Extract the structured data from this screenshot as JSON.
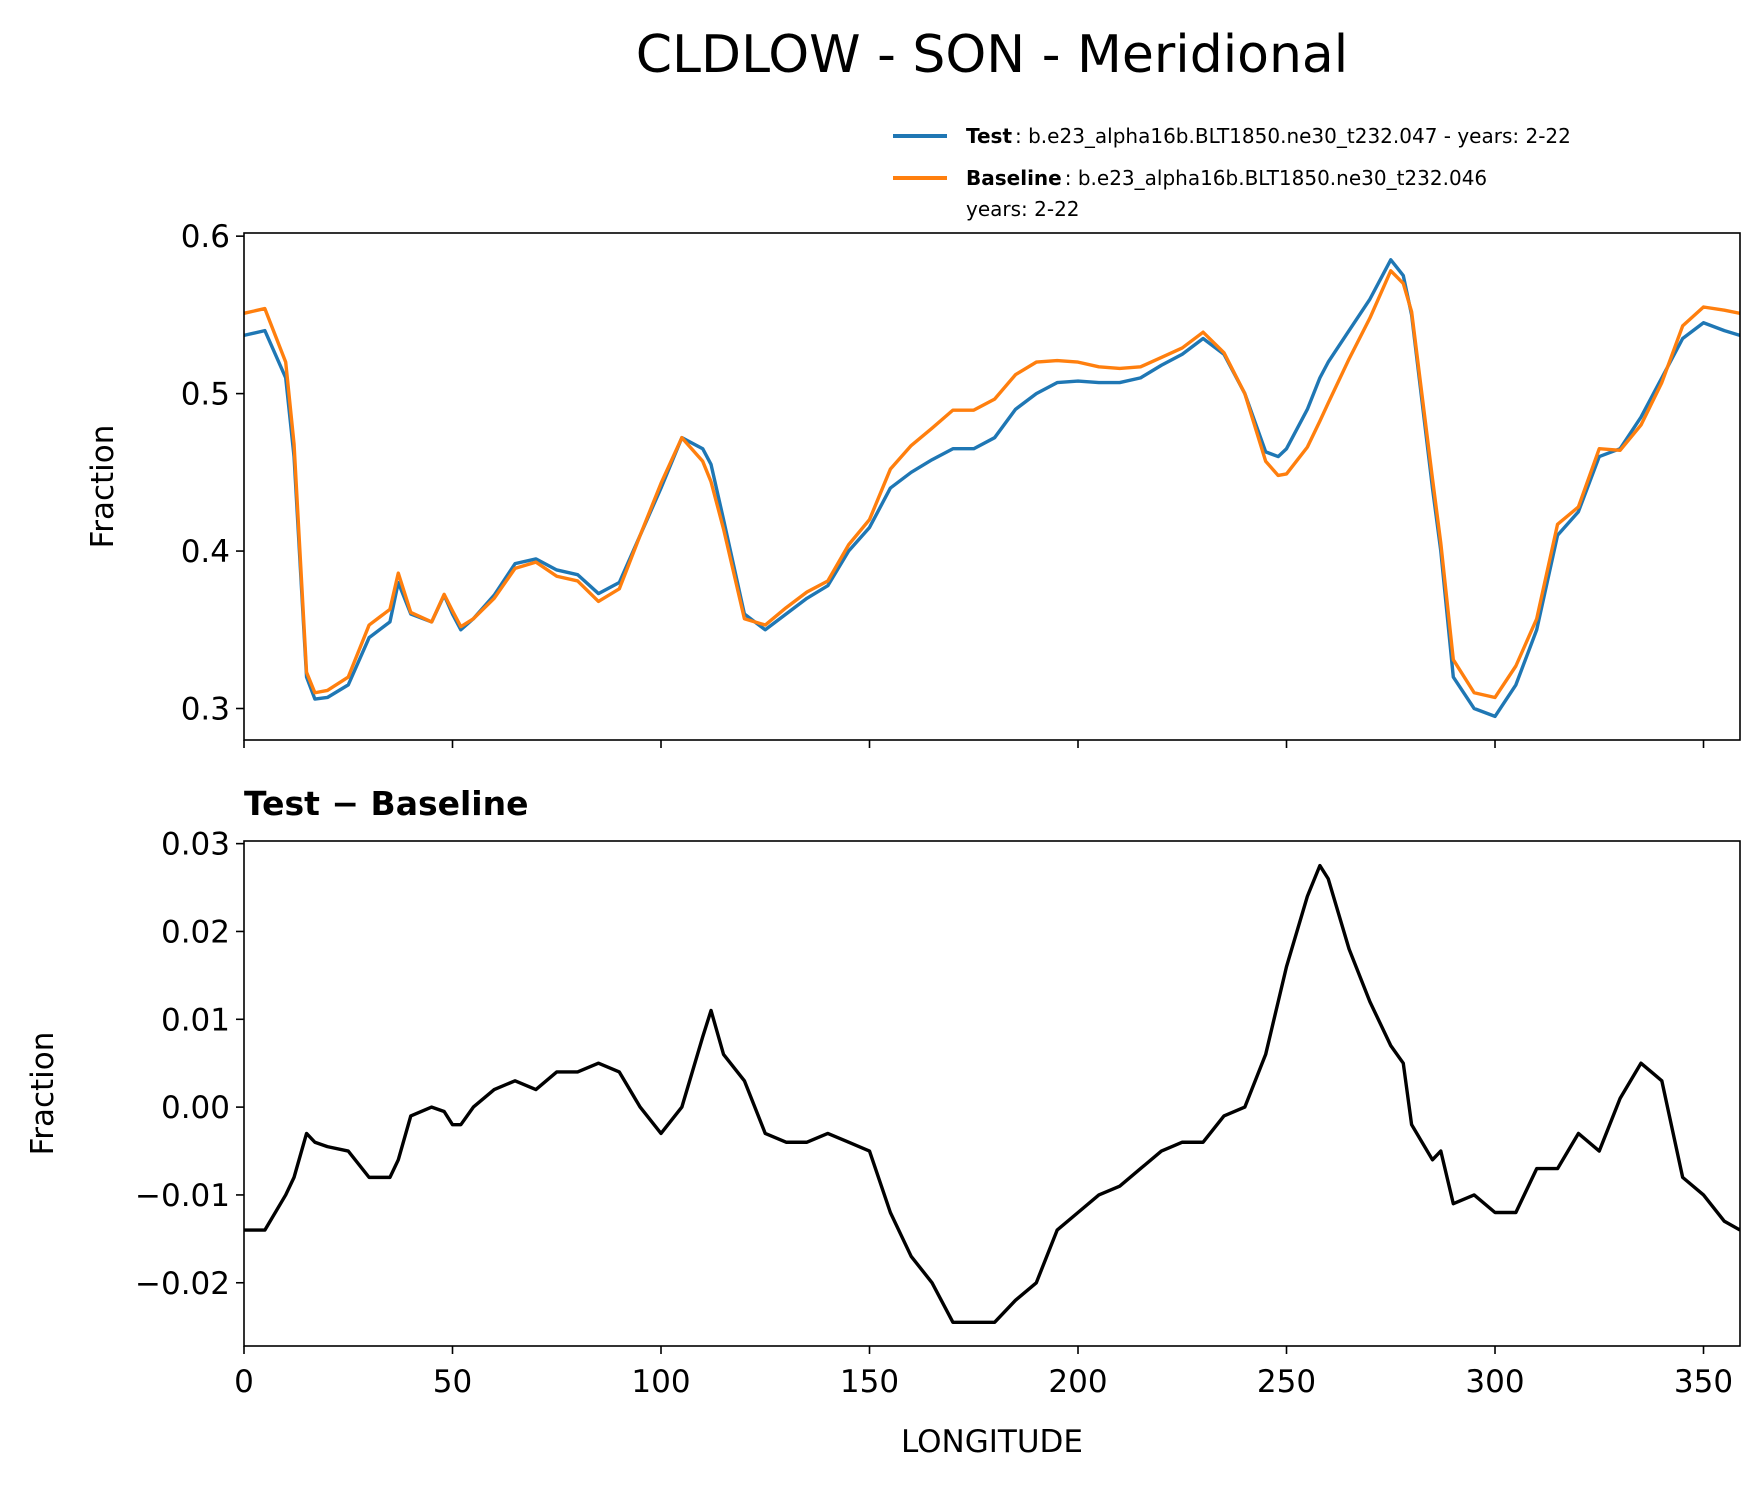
{
  "chart_data": [
    {
      "type": "line",
      "title": "CLDLOW - SON - Meridional",
      "ylabel": "Fraction",
      "x": [
        0,
        5,
        10,
        12,
        15,
        17,
        20,
        25,
        30,
        35,
        37,
        40,
        45,
        48,
        50,
        52,
        55,
        60,
        65,
        70,
        75,
        80,
        85,
        90,
        95,
        100,
        105,
        110,
        112,
        115,
        120,
        125,
        130,
        135,
        140,
        145,
        150,
        155,
        160,
        165,
        170,
        175,
        180,
        185,
        190,
        195,
        200,
        205,
        210,
        215,
        220,
        225,
        230,
        235,
        240,
        245,
        248,
        250,
        255,
        258,
        260,
        265,
        270,
        275,
        278,
        280,
        285,
        287,
        290,
        295,
        300,
        305,
        310,
        315,
        320,
        325,
        330,
        335,
        340,
        345,
        350,
        355,
        358.75
      ],
      "series": [
        {
          "name": "Test",
          "label": [
            ": b.e23_alpha16b.BLT1850.ne30_t232.047 - years: 2-22"
          ],
          "color": "#1f77b4",
          "values": [
            0.537,
            0.54,
            0.51,
            0.46,
            0.32,
            0.306,
            0.307,
            0.315,
            0.345,
            0.355,
            0.38,
            0.36,
            0.355,
            0.372,
            0.36,
            0.35,
            0.357,
            0.372,
            0.392,
            0.395,
            0.388,
            0.385,
            0.373,
            0.38,
            0.41,
            0.44,
            0.472,
            0.465,
            0.455,
            0.42,
            0.36,
            0.35,
            0.36,
            0.37,
            0.378,
            0.4,
            0.415,
            0.44,
            0.45,
            0.458,
            0.465,
            0.465,
            0.472,
            0.49,
            0.5,
            0.507,
            0.508,
            0.507,
            0.507,
            0.51,
            0.518,
            0.525,
            0.535,
            0.525,
            0.5,
            0.463,
            0.46,
            0.465,
            0.49,
            0.51,
            0.52,
            0.54,
            0.56,
            0.585,
            0.575,
            0.55,
            0.44,
            0.4,
            0.32,
            0.3,
            0.295,
            0.315,
            0.35,
            0.41,
            0.425,
            0.46,
            0.465,
            0.485,
            0.51,
            0.535,
            0.545,
            0.54,
            0.537
          ]
        },
        {
          "name": "Baseline",
          "label": [
            ": b.e23_alpha16b.BLT1850.ne30_t232.046",
            "years: 2-22"
          ],
          "color": "#ff7f0e",
          "values": [
            0.551,
            0.554,
            0.52,
            0.468,
            0.323,
            0.31,
            0.3115,
            0.32,
            0.353,
            0.363,
            0.386,
            0.361,
            0.355,
            0.3725,
            0.362,
            0.352,
            0.357,
            0.37,
            0.389,
            0.393,
            0.384,
            0.381,
            0.368,
            0.376,
            0.41,
            0.443,
            0.472,
            0.457,
            0.444,
            0.414,
            0.357,
            0.353,
            0.364,
            0.374,
            0.381,
            0.404,
            0.42,
            0.452,
            0.467,
            0.478,
            0.4895,
            0.4895,
            0.4965,
            0.512,
            0.52,
            0.521,
            0.52,
            0.517,
            0.516,
            0.517,
            0.523,
            0.529,
            0.539,
            0.526,
            0.5,
            0.457,
            0.448,
            0.449,
            0.466,
            0.4825,
            0.494,
            0.522,
            0.548,
            0.578,
            0.57,
            0.552,
            0.446,
            0.405,
            0.331,
            0.31,
            0.307,
            0.327,
            0.357,
            0.417,
            0.428,
            0.465,
            0.464,
            0.48,
            0.507,
            0.543,
            0.555,
            0.553,
            0.551
          ]
        }
      ],
      "xlim": [
        0,
        358.75
      ],
      "ylim": [
        0.28,
        0.602
      ],
      "yticks": [
        0.3,
        0.4,
        0.5,
        0.6
      ]
    },
    {
      "type": "line",
      "title": "Test − Baseline",
      "ylabel": "Fraction",
      "xlabel": "LONGITUDE",
      "color": "#000000",
      "x": [
        0,
        5,
        10,
        12,
        15,
        17,
        20,
        25,
        30,
        35,
        37,
        40,
        45,
        48,
        50,
        52,
        55,
        60,
        65,
        70,
        75,
        80,
        85,
        90,
        95,
        100,
        105,
        110,
        112,
        115,
        120,
        125,
        130,
        135,
        140,
        145,
        150,
        155,
        160,
        165,
        170,
        175,
        180,
        185,
        190,
        195,
        200,
        205,
        210,
        215,
        220,
        225,
        230,
        235,
        240,
        245,
        248,
        250,
        255,
        258,
        260,
        265,
        270,
        275,
        278,
        280,
        285,
        287,
        290,
        295,
        300,
        305,
        310,
        315,
        320,
        325,
        330,
        335,
        340,
        345,
        350,
        355,
        358.75
      ],
      "values": [
        -0.014,
        -0.014,
        -0.01,
        -0.008,
        -0.003,
        -0.004,
        -0.0045,
        -0.005,
        -0.008,
        -0.008,
        -0.006,
        -0.001,
        0.0,
        -0.0005,
        -0.002,
        -0.002,
        0.0,
        0.002,
        0.003,
        0.002,
        0.004,
        0.004,
        0.005,
        0.004,
        0.0,
        -0.003,
        0.0,
        0.008,
        0.011,
        0.006,
        0.003,
        -0.003,
        -0.004,
        -0.004,
        -0.003,
        -0.004,
        -0.005,
        -0.012,
        -0.017,
        -0.02,
        -0.0245,
        -0.0245,
        -0.0245,
        -0.022,
        -0.02,
        -0.014,
        -0.012,
        -0.01,
        -0.009,
        -0.007,
        -0.005,
        -0.004,
        -0.004,
        -0.001,
        0.0,
        0.006,
        0.012,
        0.016,
        0.024,
        0.0275,
        0.026,
        0.018,
        0.012,
        0.007,
        0.005,
        -0.002,
        -0.006,
        -0.005,
        -0.011,
        -0.01,
        -0.012,
        -0.012,
        -0.007,
        -0.007,
        -0.003,
        -0.005,
        0.001,
        0.005,
        0.003,
        -0.008,
        -0.01,
        -0.013,
        -0.014
      ],
      "xlim": [
        0,
        358.75
      ],
      "ylim": [
        -0.0272,
        0.0303
      ],
      "xticks": [
        0,
        50,
        100,
        150,
        200,
        250,
        300,
        350
      ],
      "yticks": [
        {
          "value": -0.02,
          "label": "−0.02"
        },
        {
          "value": -0.01,
          "label": "−0.01"
        },
        {
          "value": 0,
          "label": "0.00"
        },
        0.01,
        0.02,
        0.03
      ]
    }
  ]
}
